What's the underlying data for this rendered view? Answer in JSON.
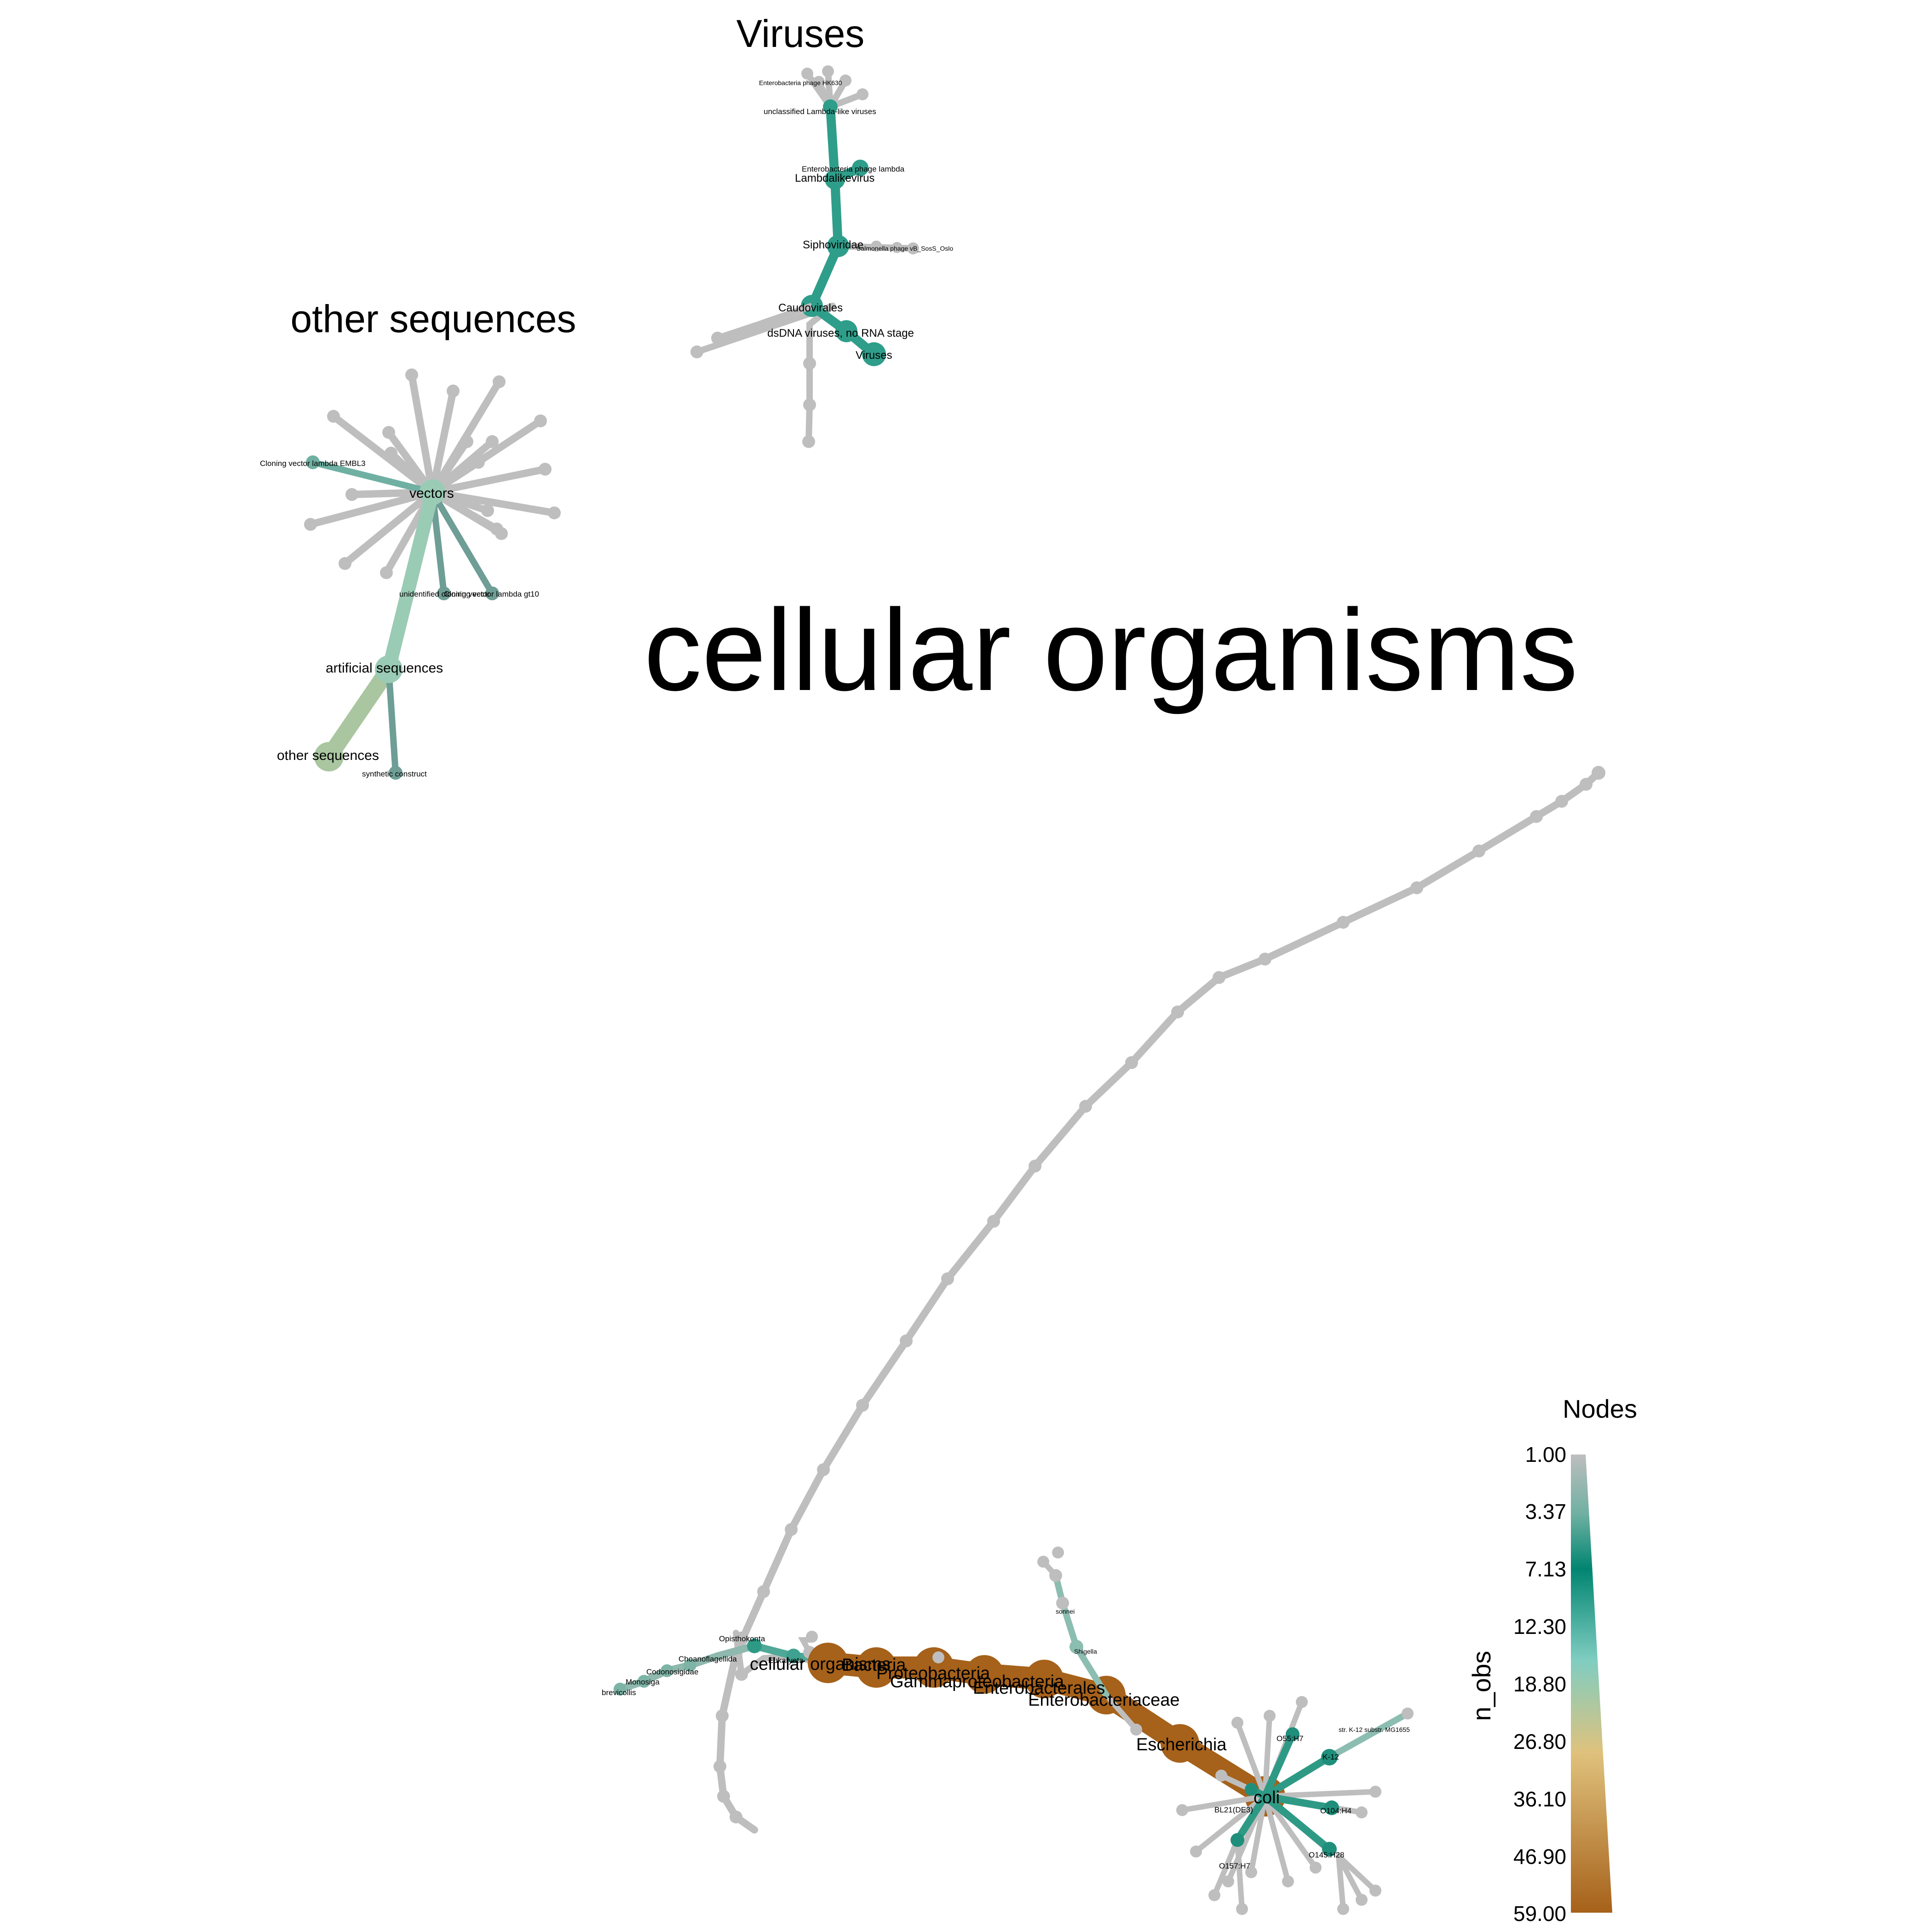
{
  "titles": {
    "viruses": "Viruses",
    "other_sequences": "other sequences",
    "cellular_organisms": "cellular organisms"
  },
  "legend": {
    "title": "Nodes",
    "axis_label": "n_obs",
    "ticks": [
      "1.00",
      "3.37",
      "7.13",
      "12.30",
      "18.80",
      "26.80",
      "36.10",
      "46.90",
      "59.00"
    ]
  },
  "colors": {
    "low": "#BEBEBE",
    "teal_dark": "#018571",
    "teal_light": "#80CDC1",
    "tan": "#DFC27D",
    "brown": "#A6611A"
  },
  "labels": {
    "viruses_root": "Viruses",
    "dsdna": "dsDNA viruses, no RNA stage",
    "caudovirales": "Caudovirales",
    "siphoviridae": "Siphoviridae",
    "salmonella_phage": "Salmonella phage vB_SosS_Oslo",
    "lambdalikevirus": "Lambdalikevirus",
    "ent_phage_lambda": "Enterobacteria phage lambda",
    "unclassified_lambda": "unclassified Lambda-like viruses",
    "ent_phage_hk630": "Enterobacteria phage HK630",
    "other_root": "other sequences",
    "artificial": "artificial sequences",
    "synthetic": "synthetic construct",
    "vectors": "vectors",
    "cloning_embl3": "Cloning vector lambda EMBL3",
    "unidentified_cloning": "unidentified cloning vector",
    "cloning_gt10": "Cloning vector lambda gt10",
    "cellular_root": "cellular organisms",
    "bacteria": "Bacteria",
    "proteobacteria": "Proteobacteria",
    "gammaproteobacteria": "Gammaproteobacteria",
    "enterobacterales": "Enterobacterales",
    "enterobacteriaceae": "Enterobacteriaceae",
    "escherichia": "Escherichia",
    "coli": "coli",
    "shigella": "Shigella",
    "sonnei": "sonnei",
    "eukaryota": "Eukaryota",
    "opisthokonta": "Opisthokonta",
    "choanoflagellida": "Choanoflagellida",
    "codonosigidae": "Codonosigidae",
    "monosiga": "Monosiga",
    "brevicollis": "brevicollis",
    "o55h7": "O55:H7",
    "k12": "K-12",
    "mg1655": "str. K-12 substr. MG1655",
    "bl21": "BL21(DE3)",
    "o104h4": "O104:H4",
    "o157h7": "O157:H7",
    "o145h28": "O145:H28"
  }
}
